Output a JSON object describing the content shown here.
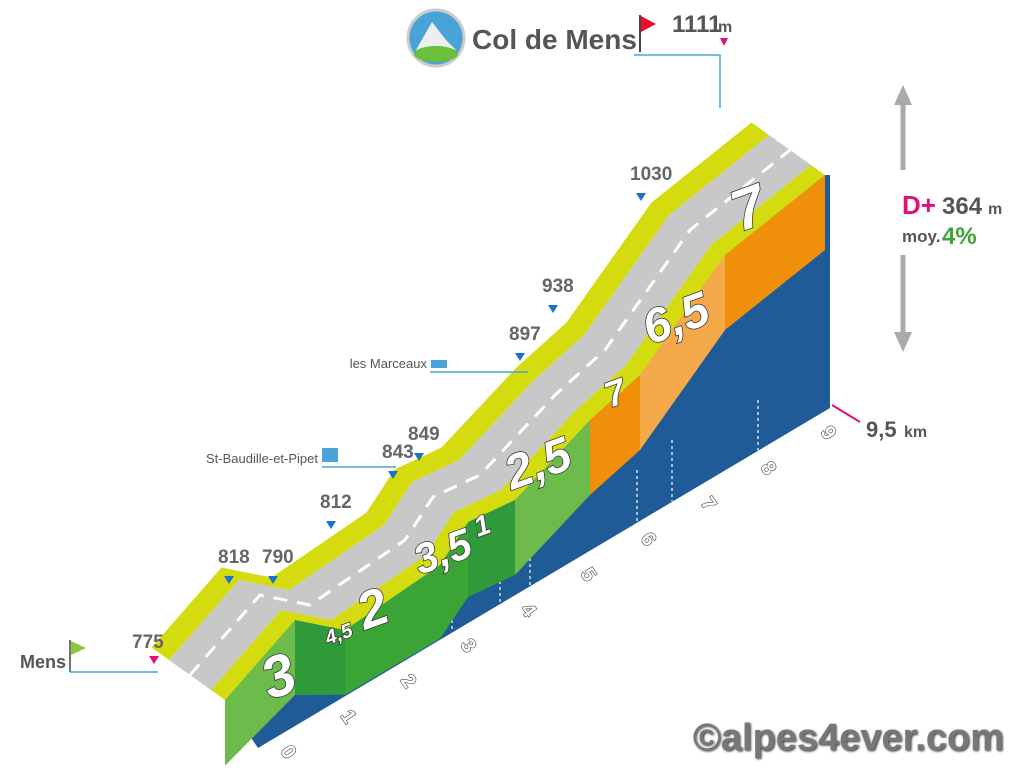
{
  "header": {
    "title": "Col de Mens",
    "summit_altitude": 1111,
    "summit_unit": "m"
  },
  "stats": {
    "gain_label": "D+",
    "gain": 364,
    "gain_unit": "m",
    "average_label": "moy.",
    "average": "4%"
  },
  "distance": {
    "value": "9,5",
    "unit": "km"
  },
  "start": {
    "name": "Mens",
    "altitude": 775
  },
  "waypoints": [
    {
      "altitude": 818
    },
    {
      "altitude": 790
    },
    {
      "altitude": 812
    },
    {
      "altitude": 843
    },
    {
      "altitude": 849,
      "place": "St-Baudille-et-Pipet"
    },
    {
      "altitude": 897,
      "place": "les Marceaux"
    },
    {
      "altitude": 938
    },
    {
      "altitude": 1030
    }
  ],
  "km_markers": [
    0,
    1,
    2,
    3,
    4,
    5,
    6,
    7,
    8,
    9
  ],
  "gradients": [
    3,
    "4,5",
    2,
    "3,5",
    1,
    "2,5",
    7,
    "6,5",
    7
  ],
  "footer": {
    "credit": "©alpes4ever.com"
  }
}
